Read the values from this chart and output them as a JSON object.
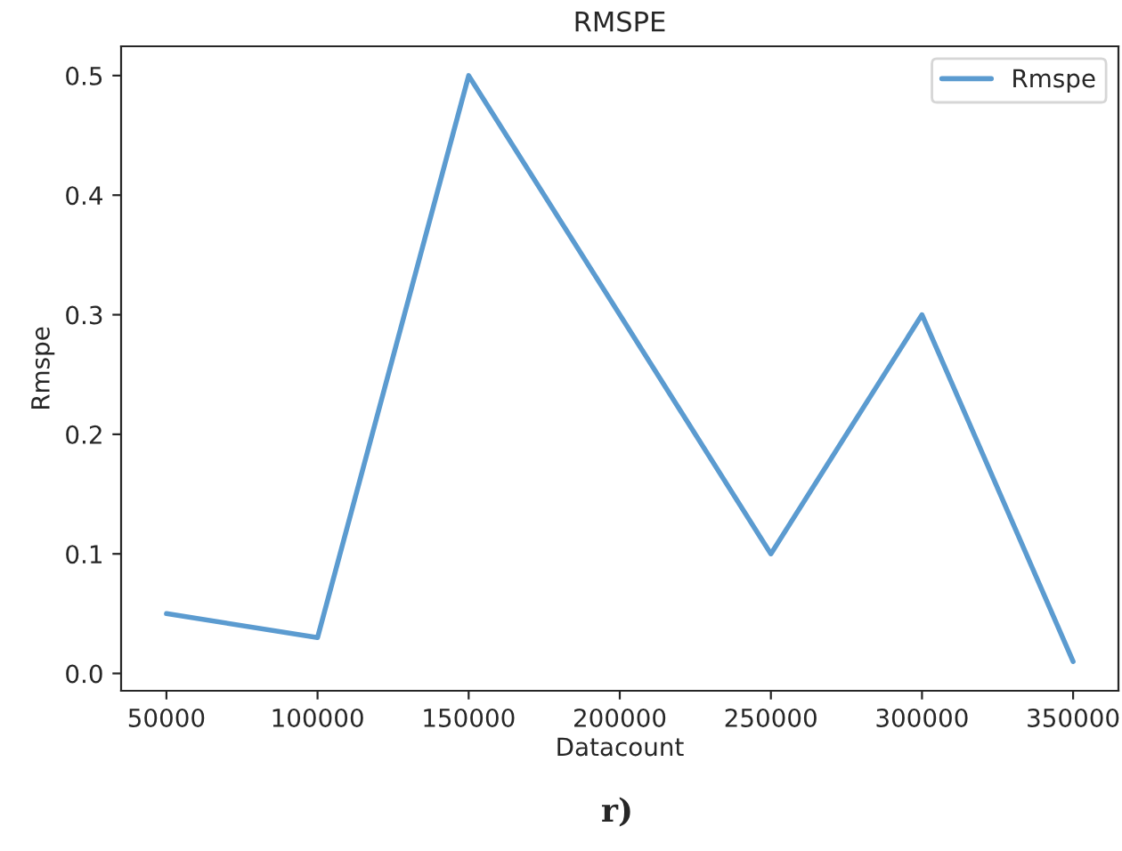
{
  "chart_data": {
    "type": "line",
    "title": "RMSPE",
    "xlabel": "Datacount",
    "ylabel": "Rmspe",
    "x": [
      50000,
      100000,
      150000,
      200000,
      250000,
      300000,
      350000
    ],
    "series": [
      {
        "name": "Rmspe",
        "color": "#5b9bd0",
        "values": [
          0.05,
          0.03,
          0.5,
          0.3,
          0.1,
          0.3,
          0.01
        ]
      }
    ],
    "xlim": [
      35000,
      365000
    ],
    "xticks": [
      50000,
      100000,
      150000,
      200000,
      250000,
      300000,
      350000
    ],
    "ylim": [
      -0.0145,
      0.5245
    ],
    "yticks": [
      {
        "value": 0,
        "label": "0.0"
      },
      0.1,
      0.2,
      0.3,
      0.4,
      0.5
    ],
    "legend": "top right",
    "grid": false,
    "marker": "none",
    "line_style": "solid",
    "annotations": [
      "r)"
    ]
  }
}
